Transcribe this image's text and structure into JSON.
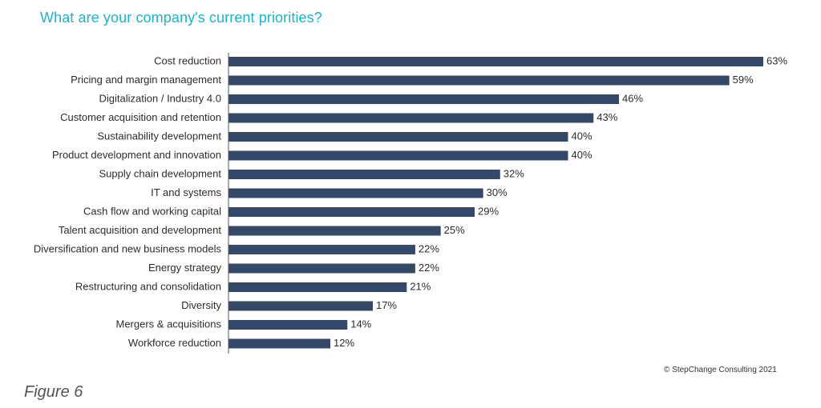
{
  "chart_data": {
    "type": "bar",
    "orientation": "horizontal",
    "title": "What are your company's current priorities?",
    "categories": [
      "Cost reduction",
      "Pricing and margin management",
      "Digitalization / Industry 4.0",
      "Customer acquisition and retention",
      "Sustainability development",
      "Product development and innovation",
      "Supply chain development",
      "IT and systems",
      "Cash flow and working capital",
      "Talent acquisition and development",
      "Diversification and new business models",
      "Energy strategy",
      "Restructuring and consolidation",
      "Diversity",
      "Mergers & acquisitions",
      "Workforce reduction"
    ],
    "values": [
      63,
      59,
      46,
      43,
      40,
      40,
      32,
      30,
      29,
      25,
      22,
      22,
      21,
      17,
      14,
      12
    ],
    "value_labels": [
      "63%",
      "59%",
      "46%",
      "43%",
      "40%",
      "40%",
      "32%",
      "30%",
      "29%",
      "25%",
      "22%",
      "22%",
      "21%",
      "17%",
      "14%",
      "12%"
    ],
    "xlim": [
      0,
      63
    ],
    "bar_color": "#34496a",
    "grid": false
  },
  "colors": {
    "title": "#1bb3cf",
    "bar": "#34496a"
  },
  "footer": {
    "credit": "© StepChange Consulting 2021",
    "figure_label": "Figure 6"
  }
}
